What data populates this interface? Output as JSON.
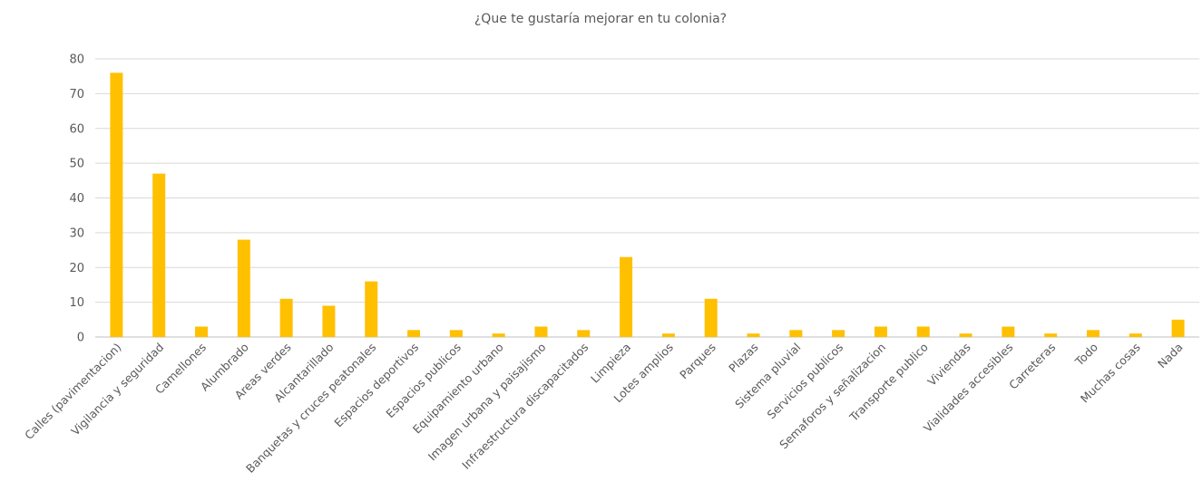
{
  "chart_data": {
    "type": "bar",
    "title": "¿Que te gustaría mejorar en tu colonia?",
    "xlabel": "",
    "ylabel": "",
    "ylim": [
      0,
      80
    ],
    "yticks": [
      0,
      10,
      20,
      30,
      40,
      50,
      60,
      70,
      80
    ],
    "grid": true,
    "legend": "none",
    "bar_color": "#FFC000",
    "categories": [
      "Calles (pavimentacion)",
      "Vigilancia y seguridad",
      "Camellones",
      "Alumbrado",
      "Areas verdes",
      "Alcantarillado",
      "Banquetas y cruces peatonales",
      "Espacios deportivos",
      "Espacios publicos",
      "Equipamiento urbano",
      "Imagen urbana y paisajismo",
      "Infraestructura discapacitados",
      "Limpieza",
      "Lotes amplios",
      "Parques",
      "Plazas",
      "Sistema pluvial",
      "Servicios publicos",
      "Semaforos y señalizacion",
      "Transporte publico",
      "Viviendas",
      "Vialidades accesibles",
      "Carreteras",
      "Todo",
      "Muchas cosas",
      "Nada"
    ],
    "values": [
      76,
      47,
      3,
      28,
      11,
      9,
      16,
      2,
      2,
      1,
      3,
      2,
      23,
      1,
      11,
      1,
      2,
      2,
      3,
      3,
      1,
      3,
      1,
      2,
      1,
      5
    ]
  }
}
